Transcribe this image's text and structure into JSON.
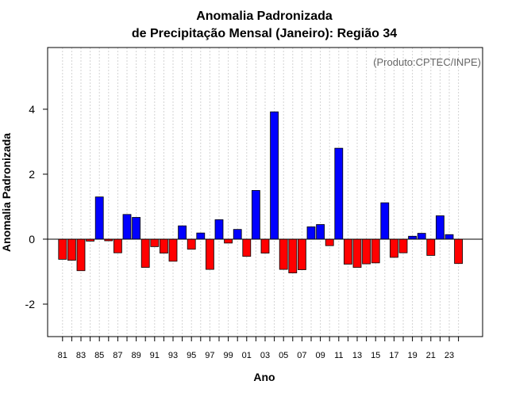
{
  "chart_data": {
    "type": "bar",
    "title_line1": "Anomalia Padronizada",
    "title_line2": "de Precipitação Mensal (Janeiro): Região 34",
    "xlabel": "Ano",
    "ylabel": "Anomalia Padronizada",
    "credit": "(Produto:CPTEC/INPE)",
    "ylim": [
      -3,
      5.9
    ],
    "yticks": [
      -2,
      0,
      2,
      4
    ],
    "categories": [
      "81",
      "82",
      "83",
      "84",
      "85",
      "86",
      "87",
      "88",
      "89",
      "90",
      "91",
      "92",
      "93",
      "94",
      "95",
      "96",
      "97",
      "98",
      "99",
      "00",
      "01",
      "02",
      "03",
      "04",
      "05",
      "06",
      "07",
      "08",
      "09",
      "10",
      "11",
      "12",
      "13",
      "14",
      "15",
      "16",
      "17",
      "18",
      "19",
      "20",
      "21",
      "22",
      "23",
      "24"
    ],
    "xtick_labels": [
      "81",
      "83",
      "85",
      "87",
      "89",
      "91",
      "93",
      "95",
      "97",
      "99",
      "01",
      "03",
      "05",
      "07",
      "09",
      "11",
      "13",
      "15",
      "17",
      "19",
      "21",
      "23"
    ],
    "values": [
      -0.62,
      -0.65,
      -0.97,
      -0.06,
      1.3,
      -0.05,
      -0.42,
      0.76,
      0.67,
      -0.87,
      -0.23,
      -0.43,
      -0.68,
      0.41,
      -0.31,
      0.19,
      -0.93,
      0.6,
      -0.12,
      0.3,
      -0.53,
      1.5,
      -0.43,
      3.92,
      -0.93,
      -1.04,
      -0.94,
      0.38,
      0.45,
      -0.2,
      2.8,
      -0.77,
      -0.87,
      -0.76,
      -0.73,
      1.12,
      -0.56,
      -0.42,
      0.09,
      0.18,
      -0.5,
      0.72,
      0.14,
      -0.75
    ],
    "grid": "vertical-dotted",
    "colors": {
      "positive": "#0000ff",
      "negative": "#ff0000",
      "grid": "#d3d3d3",
      "credit": "#666666"
    }
  }
}
